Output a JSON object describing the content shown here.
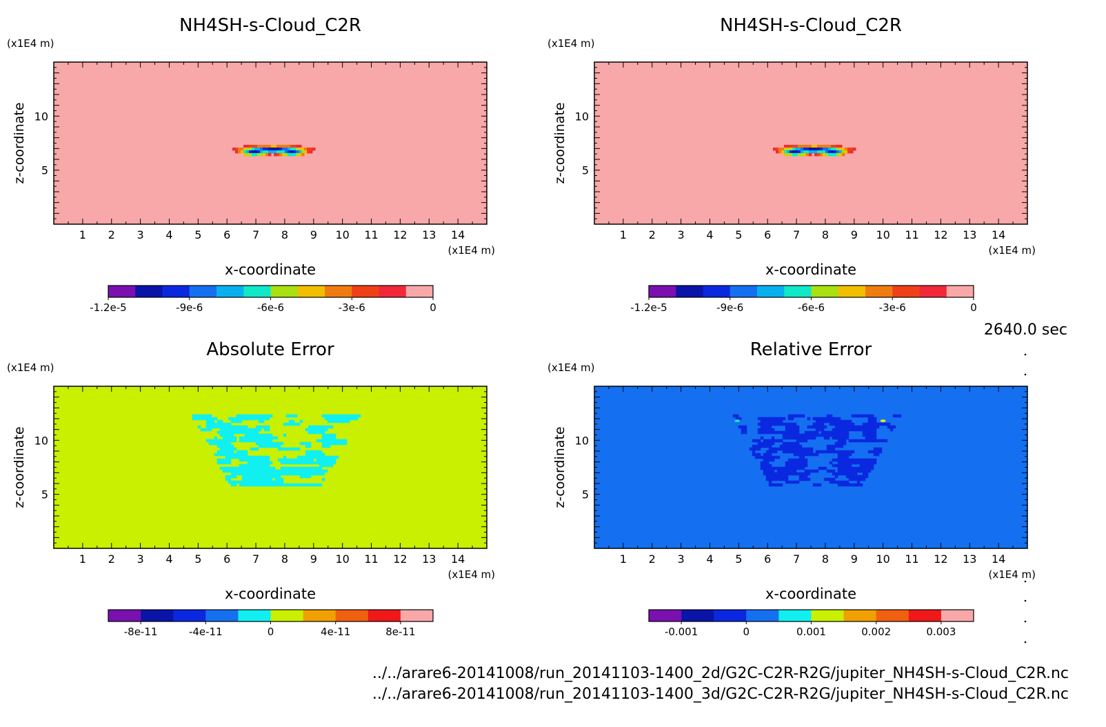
{
  "time_label": "2640.0 sec",
  "footer": {
    "file1": "../../arare6-20141008/run_20141103-1400_2d/G2C-C2R-R2G/jupiter_NH4SH-s-Cloud_C2R.nc",
    "file2": "../../arare6-20141008/run_20141103-1400_3d/G2C-C2R-R2G/jupiter_NH4SH-s-Cloud_C2R.nc"
  },
  "chart_data": [
    {
      "type": "heatmap",
      "title": "NH4SH-s-Cloud_C2R",
      "xlabel": "x-coordinate",
      "ylabel": "z-coordinate",
      "x_unit": "(x1E4 m)",
      "y_unit": "(x1E4 m)",
      "xlim": [
        0,
        15
      ],
      "ylim": [
        0,
        15
      ],
      "x_ticks": [
        1,
        2,
        3,
        4,
        5,
        6,
        7,
        8,
        9,
        10,
        11,
        12,
        13,
        14
      ],
      "y_ticks": [
        5,
        10
      ],
      "background_value": 0,
      "feature": {
        "shape": "cloud-band",
        "x_range": [
          5.9,
          9.6
        ],
        "z_range": [
          6.2,
          7.6
        ],
        "min_value": -1.2e-05
      },
      "colorbar": {
        "colors": [
          "#7a10b0",
          "#0a14a8",
          "#0a28e0",
          "#1470f0",
          "#08b0f0",
          "#10e8c8",
          "#a8e010",
          "#f0c000",
          "#f07c10",
          "#f04018",
          "#f02838",
          "#f8a8a8"
        ],
        "tick_labels": [
          "-1.2e-5",
          "-9e-6",
          "-6e-6",
          "-3e-6",
          "0"
        ],
        "tick_positions": [
          0,
          3,
          6,
          9,
          12
        ]
      }
    },
    {
      "type": "heatmap",
      "title": "NH4SH-s-Cloud_C2R",
      "xlabel": "x-coordinate",
      "ylabel": "z-coordinate",
      "x_unit": "(x1E4 m)",
      "y_unit": "(x1E4 m)",
      "xlim": [
        0,
        15
      ],
      "ylim": [
        0,
        15
      ],
      "x_ticks": [
        1,
        2,
        3,
        4,
        5,
        6,
        7,
        8,
        9,
        10,
        11,
        12,
        13,
        14
      ],
      "y_ticks": [
        5,
        10
      ],
      "background_value": 0,
      "feature": {
        "shape": "cloud-band",
        "x_range": [
          5.9,
          9.6
        ],
        "z_range": [
          6.2,
          7.6
        ],
        "min_value": -1.2e-05
      },
      "colorbar": {
        "colors": [
          "#7a10b0",
          "#0a14a8",
          "#0a28e0",
          "#1470f0",
          "#08b0f0",
          "#10e8c8",
          "#a8e010",
          "#f0c000",
          "#f07c10",
          "#f04018",
          "#f02838",
          "#f8a8a8"
        ],
        "tick_labels": [
          "-1.2e-5",
          "-9e-6",
          "-6e-6",
          "-3e-6",
          "0"
        ],
        "tick_positions": [
          0,
          3,
          6,
          9,
          12
        ]
      }
    },
    {
      "type": "heatmap",
      "title": "Absolute Error",
      "xlabel": "x-coordinate",
      "ylabel": "z-coordinate",
      "x_unit": "(x1E4 m)",
      "y_unit": "(x1E4 m)",
      "xlim": [
        0,
        15
      ],
      "ylim": [
        0,
        15
      ],
      "x_ticks": [
        1,
        2,
        3,
        4,
        5,
        6,
        7,
        8,
        9,
        10,
        11,
        12,
        13,
        14
      ],
      "y_ticks": [
        5,
        10
      ],
      "background_value": 0,
      "feature": {
        "shape": "noise-patch",
        "x_range": [
          4.7,
          10.6
        ],
        "z_range": [
          5.8,
          12.4
        ],
        "value": -2e-11
      },
      "colorbar": {
        "colors": [
          "#7a10b0",
          "#0a14a8",
          "#0a28e0",
          "#1470f0",
          "#10f0f0",
          "#c8f000",
          "#f0a000",
          "#f06010",
          "#f01818",
          "#f8a8a8"
        ],
        "tick_labels": [
          "-8e-11",
          "-4e-11",
          "0",
          "4e-11",
          "8e-11"
        ],
        "tick_positions": [
          1,
          3,
          5,
          7,
          9
        ]
      }
    },
    {
      "type": "heatmap",
      "title": "Relative Error",
      "xlabel": "x-coordinate",
      "ylabel": "z-coordinate",
      "x_unit": "(x1E4 m)",
      "y_unit": "(x1E4 m)",
      "xlim": [
        0,
        15
      ],
      "ylim": [
        0,
        15
      ],
      "x_ticks": [
        1,
        2,
        3,
        4,
        5,
        6,
        7,
        8,
        9,
        10,
        11,
        12,
        13,
        14
      ],
      "y_ticks": [
        5,
        10
      ],
      "background_value": 0,
      "feature": {
        "shape": "noise-patch",
        "x_range": [
          4.7,
          10.6
        ],
        "z_range": [
          5.8,
          12.4
        ],
        "value": -0.0005
      },
      "colorbar": {
        "colors": [
          "#7a10b0",
          "#0a14a8",
          "#0a28e0",
          "#1470f0",
          "#10f0f0",
          "#c8f000",
          "#f0a000",
          "#f06010",
          "#f01818",
          "#f8a8a8"
        ],
        "tick_labels": [
          "-0.001",
          "0",
          "0.001",
          "0.002",
          "0.003"
        ],
        "tick_positions": [
          1,
          3,
          5,
          7,
          9
        ]
      }
    }
  ]
}
